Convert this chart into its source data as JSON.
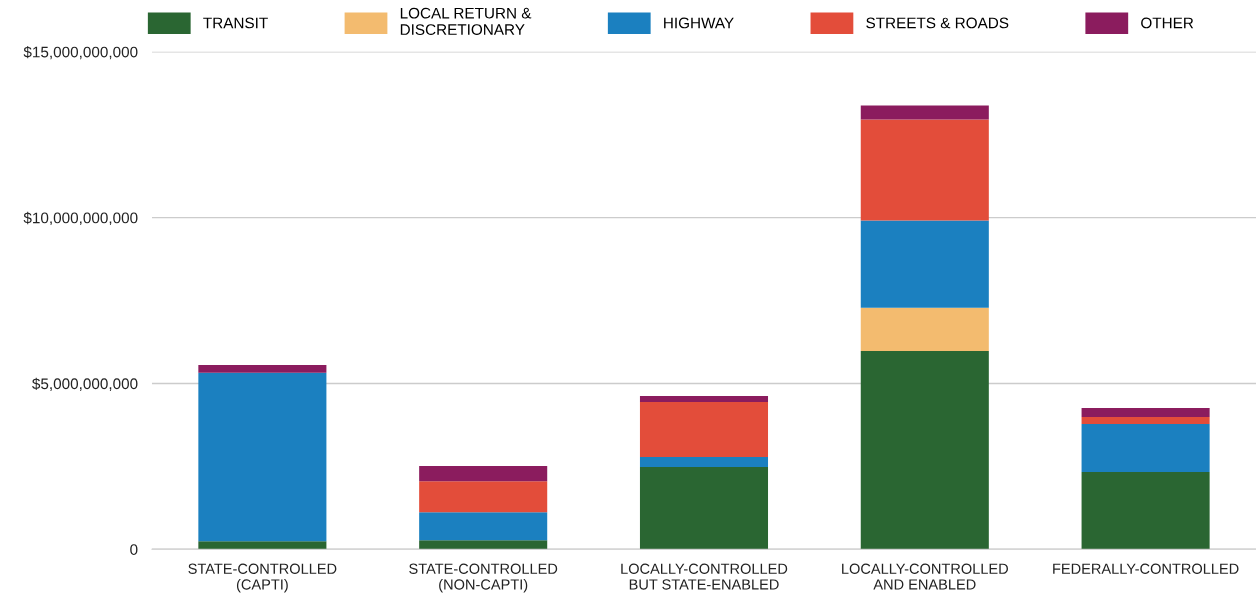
{
  "chart_data": {
    "type": "bar",
    "stacked": true,
    "categories": [
      "STATE-CONTROLLED\n(CAPTI)",
      "STATE-CONTROLLED\n(NON-CAPTI)",
      "LOCALLY-CONTROLLED\nBUT STATE-ENABLED",
      "LOCALLY-CONTROLLED\nAND ENABLED",
      "FEDERALLY-CONTROLLED"
    ],
    "series": [
      {
        "name": "TRANSIT",
        "color": "#2a6632",
        "values": [
          240000000,
          270000000,
          2480000000,
          5980000000,
          2330000000
        ]
      },
      {
        "name": "LOCAL RETURN &\nDISCRETIONARY",
        "color": "#f3bb6f",
        "values": [
          0,
          0,
          0,
          1300000000,
          0
        ]
      },
      {
        "name": "HIGHWAY",
        "color": "#1b80c0",
        "values": [
          5080000000,
          850000000,
          300000000,
          2630000000,
          1450000000
        ]
      },
      {
        "name": "STREETS & ROADS",
        "color": "#e34d3a",
        "values": [
          0,
          930000000,
          1660000000,
          3050000000,
          210000000
        ]
      },
      {
        "name": "OTHER",
        "color": "#8b1c5e",
        "values": [
          240000000,
          460000000,
          180000000,
          420000000,
          270000000
        ]
      }
    ],
    "ylim": [
      0,
      15000000000
    ],
    "yticks": [
      {
        "value": 0,
        "label": "0"
      },
      {
        "value": 5000000000,
        "label": "$5,000,000,000"
      },
      {
        "value": 10000000000,
        "label": "$10,000,000,000"
      },
      {
        "value": 15000000000,
        "label": "$15,000,000,000"
      }
    ],
    "grid": "y",
    "legend": "top"
  }
}
